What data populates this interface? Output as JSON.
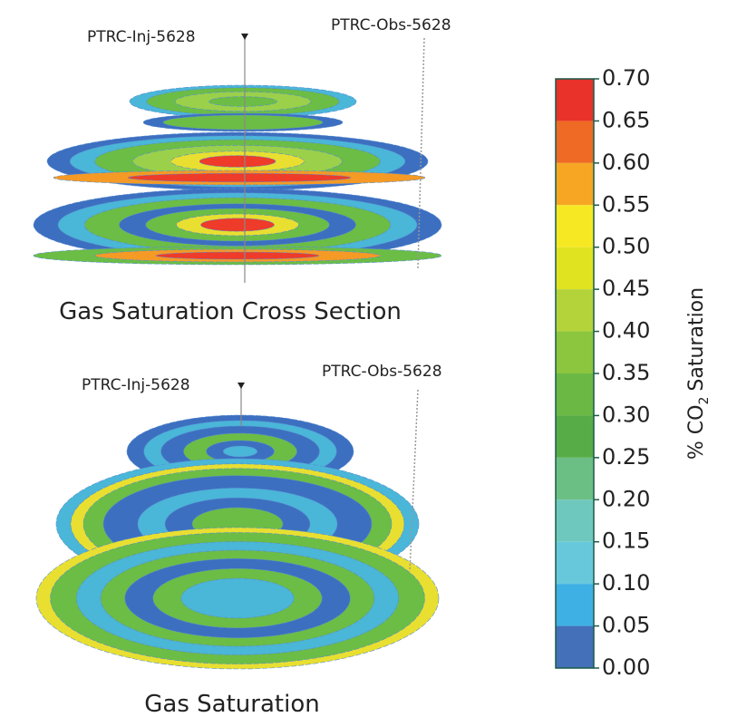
{
  "panels": [
    {
      "title": "Gas Saturation Cross Section",
      "injector": "PTRC-Inj-5628",
      "observer": "PTRC-Obs-5628"
    },
    {
      "title": "Gas Saturation",
      "injector": "PTRC-Inj-5628",
      "observer": "PTRC-Obs-5628"
    }
  ],
  "colorbar": {
    "label": {
      "prefix": "% CO",
      "subscript": "2",
      "suffix": "Saturation"
    },
    "ticks": [
      "0.70",
      "0.65",
      "0.60",
      "0.55",
      "0.50",
      "0.45",
      "0.40",
      "0.35",
      "0.30",
      "0.25",
      "0.20",
      "0.15",
      "0.10",
      "0.05",
      "0.00"
    ],
    "colors": [
      "#e8322a",
      "#ef6a25",
      "#f6a623",
      "#f7e824",
      "#e0e31f",
      "#b4d23a",
      "#8cc63f",
      "#6bb844",
      "#58ac47",
      "#6cbf84",
      "#6ec8bd",
      "#67c8dc",
      "#3fb0e4",
      "#4370b8"
    ]
  }
}
